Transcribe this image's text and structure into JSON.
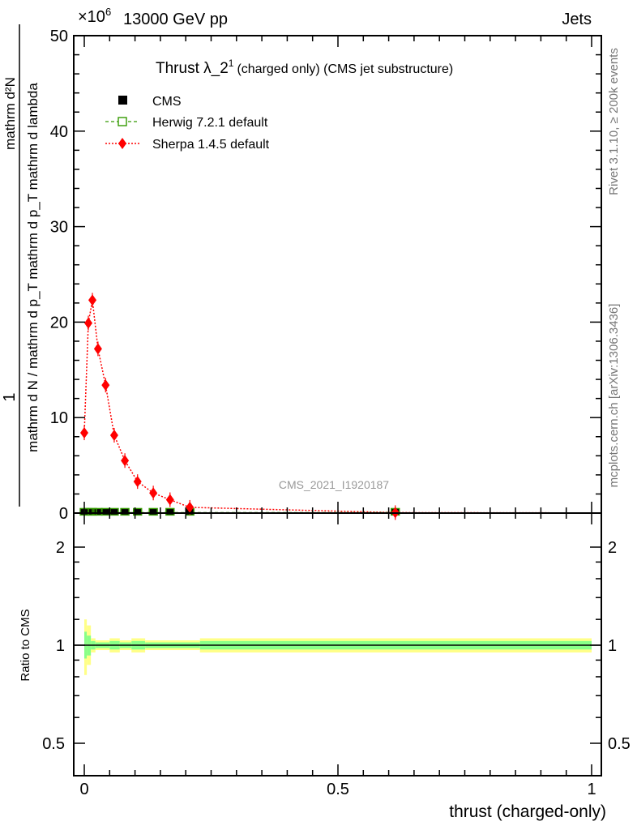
{
  "header": {
    "left": "13000 GeV pp",
    "right": "Jets",
    "exponent_base": "×10",
    "exponent": "6"
  },
  "side_text": {
    "rivet": "Rivet 3.1.10, ≥ 200k events",
    "mcplots": "mcplots.cern.ch [arXiv:1306.3436]"
  },
  "watermark": "CMS_2021_I1920187",
  "colors": {
    "sherpa": "#ff0000",
    "herwig": "#339900",
    "cms": "#000000",
    "band_outer": "#ffff88",
    "band_inner": "#88ff88"
  },
  "chart_data": [
    {
      "type": "line",
      "title": "Thrust λ_2",
      "title_sup": "1",
      "title_suffix": "(charged only) (CMS jet substructure)",
      "ylabel_prefix": "1",
      "ylabel_den": "mathrm d N / mathrm d p_T mathrm d p_T mathrm d lambda",
      "ylabel_num": "mathrm d²N",
      "ylabel_line2": "mathrm d N / mathrm d p",
      "xlim": [
        0,
        1
      ],
      "ylim": [
        0,
        50
      ],
      "yticks": [
        "0",
        "10",
        "20",
        "30",
        "40",
        "50"
      ],
      "legend": [
        "CMS",
        "Herwig 7.2.1 default",
        "Sherpa 1.4.5 default"
      ],
      "legend_position": "top-left",
      "series": [
        {
          "name": "Sherpa 1.4.5 default",
          "x": [
            0.0,
            0.008,
            0.016,
            0.027,
            0.042,
            0.059,
            0.08,
            0.105,
            0.136,
            0.169,
            0.208,
            0.613
          ],
          "y": [
            8.4,
            19.9,
            22.3,
            17.2,
            13.4,
            8.15,
            5.5,
            3.3,
            2.1,
            1.4,
            0.6,
            0.05
          ]
        },
        {
          "name": "Herwig 7.2.1 default",
          "x": [
            0.0,
            0.008,
            0.016,
            0.027,
            0.042,
            0.059,
            0.08,
            0.105,
            0.136,
            0.169,
            0.208,
            0.613
          ],
          "y": [
            0.05,
            0.05,
            0.05,
            0.05,
            0.05,
            0.05,
            0.05,
            0.05,
            0.05,
            0.05,
            0.05,
            0.05
          ]
        },
        {
          "name": "CMS",
          "x": [
            0.0,
            0.008,
            0.016,
            0.027,
            0.042,
            0.059,
            0.08,
            0.105,
            0.136,
            0.169,
            0.208,
            0.613
          ],
          "y": [
            0.05,
            0.05,
            0.05,
            0.05,
            0.05,
            0.05,
            0.05,
            0.05,
            0.05,
            0.05,
            0.05,
            0.05
          ]
        }
      ]
    },
    {
      "type": "area",
      "ylabel": "Ratio to CMS",
      "xlabel": "thrust (charged-only)",
      "xticks": [
        "0",
        "0.5",
        "1"
      ],
      "yticks": [
        "0.5",
        "1",
        "2"
      ],
      "ylim": [
        0.42,
        2.3
      ],
      "yscale": "log",
      "bin_edges": [
        0,
        0.005,
        0.013,
        0.022,
        0.05,
        0.07,
        0.093,
        0.12,
        0.228,
        1.0
      ],
      "outer_band": [
        [
          0.81,
          1.2
        ],
        [
          0.87,
          1.15
        ],
        [
          0.95,
          1.05
        ],
        [
          0.966,
          1.035
        ],
        [
          0.95,
          1.05
        ],
        [
          0.966,
          1.035
        ],
        [
          0.95,
          1.05
        ],
        [
          0.966,
          1.035
        ],
        [
          0.95,
          1.05
        ]
      ],
      "inner_band": [
        [
          0.91,
          1.1
        ],
        [
          0.93,
          1.07
        ],
        [
          0.97,
          1.03
        ],
        [
          0.98,
          1.02
        ],
        [
          0.97,
          1.03
        ],
        [
          0.98,
          1.02
        ],
        [
          0.97,
          1.03
        ],
        [
          0.98,
          1.02
        ],
        [
          0.97,
          1.03
        ]
      ]
    }
  ]
}
